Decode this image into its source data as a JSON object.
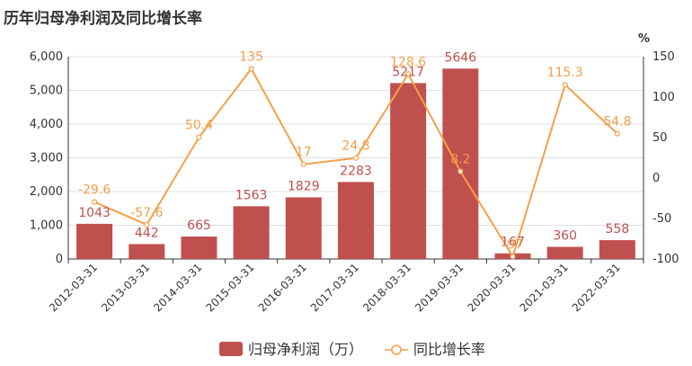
{
  "chart_data": {
    "type": "bar",
    "title": "历年归母净利润及同比增长率",
    "categories": [
      "2012-03-31",
      "2013-03-31",
      "2014-03-31",
      "2015-03-31",
      "2016-03-31",
      "2017-03-31",
      "2018-03-31",
      "2019-03-31",
      "2020-03-31",
      "2021-03-31",
      "2022-03-31"
    ],
    "y_left": {
      "ylim": [
        0,
        6000
      ],
      "ticks": [
        "0",
        "1,000",
        "2,000",
        "3,000",
        "4,000",
        "5,000",
        "6,000"
      ]
    },
    "y_right": {
      "unit": "%",
      "ylim": [
        -100,
        150
      ],
      "ticks": [
        "-100",
        "-50",
        "0",
        "50",
        "100",
        "150"
      ]
    },
    "grid": true,
    "legend_position": "bottom-center",
    "series": [
      {
        "name": "归母净利润（万）",
        "type": "bar",
        "axis": "left",
        "color": "#c0504d",
        "values": [
          1043,
          442,
          665,
          1563,
          1829,
          2283,
          5217,
          5646,
          167,
          360,
          558
        ],
        "labels": [
          "1043",
          "442",
          "665",
          "1563",
          "1829",
          "2283",
          "5217",
          "5646",
          "167",
          "360",
          "558"
        ]
      },
      {
        "name": "同比增长率",
        "type": "line",
        "axis": "right",
        "color": "#f3a04a",
        "values": [
          -29.6,
          -57.6,
          50.4,
          135,
          17,
          24.8,
          128.6,
          8.2,
          -97,
          115.3,
          54.8
        ],
        "labels": [
          "-29.6",
          "-57.6",
          "50.4",
          "135",
          "17",
          "24.8",
          "128.6",
          "8.2",
          "-97",
          "115.3",
          "54.8"
        ]
      }
    ]
  }
}
